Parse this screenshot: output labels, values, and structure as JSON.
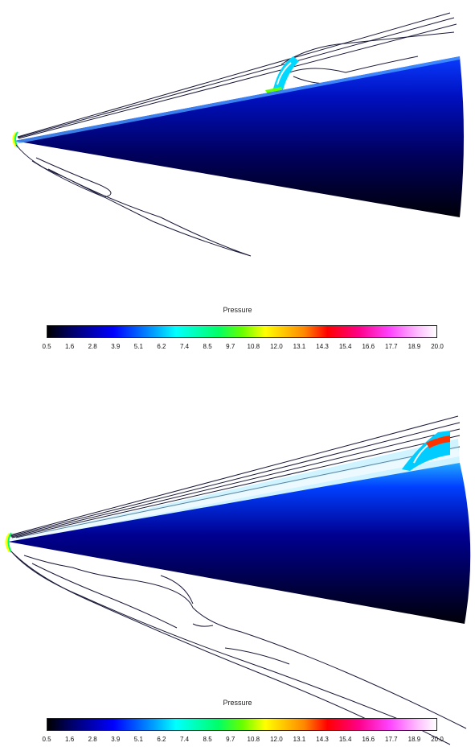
{
  "legends": [
    {
      "title": "Pressure",
      "ticks": [
        "0.5",
        "1.6",
        "2.8",
        "3.9",
        "5.1",
        "6.2",
        "7.4",
        "8.5",
        "9.7",
        "10.8",
        "12.0",
        "13.1",
        "14.3",
        "15.4",
        "16.6",
        "17.7",
        "18.9",
        "20.0"
      ]
    },
    {
      "title": "Pressure",
      "ticks": [
        "0.5",
        "1.6",
        "2.8",
        "3.9",
        "5.1",
        "6.2",
        "7.4",
        "8.5",
        "9.7",
        "10.8",
        "12.0",
        "13.1",
        "14.3",
        "15.4",
        "16.6",
        "17.7",
        "18.9",
        "20.0"
      ]
    }
  ],
  "colors": {
    "cone_dark": "#000010",
    "cone_mid": "#0000cc",
    "cone_light": "#0044ff",
    "contour": "#1a1a3a"
  }
}
